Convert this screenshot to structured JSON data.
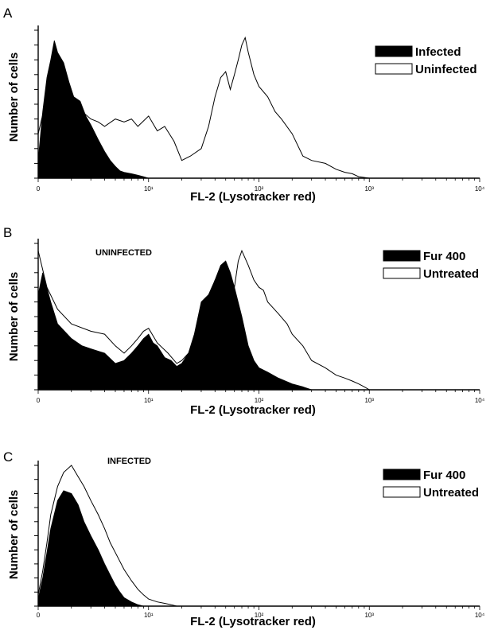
{
  "chart_data": [
    {
      "panel": "A",
      "type": "area",
      "xscale": "log",
      "xlabel": "FL-2 (Lysotracker red)",
      "ylabel": "Number of cells",
      "xticks": [
        "0",
        "10¹",
        "10²",
        "10³",
        "10⁴"
      ],
      "xlim": [
        1,
        10000
      ],
      "annotation": "",
      "legend": {
        "position": "top-right",
        "entries": [
          "Infected",
          "Uninfected"
        ]
      },
      "series": [
        {
          "name": "Infected",
          "fill": "black",
          "x": [
            1,
            1.1,
            1.2,
            1.3,
            1.4,
            1.5,
            1.7,
            1.9,
            2.1,
            2.4,
            2.7,
            3.0,
            3.5,
            4,
            4.5,
            5,
            5.5,
            6,
            7,
            8,
            9,
            10
          ],
          "y": [
            12,
            45,
            68,
            80,
            93,
            85,
            78,
            65,
            55,
            52,
            42,
            36,
            26,
            18,
            12,
            8,
            5,
            4,
            3,
            2,
            1,
            0
          ]
        },
        {
          "name": "Uninfected",
          "fill": "white",
          "x": [
            1,
            1.2,
            1.4,
            1.6,
            2.0,
            2.5,
            3.0,
            3.5,
            4,
            5,
            6,
            7,
            8,
            10,
            12,
            14,
            17,
            20,
            24,
            30,
            35,
            40,
            45,
            50,
            55,
            60,
            65,
            70,
            75,
            80,
            90,
            100,
            120,
            140,
            160,
            200,
            250,
            300,
            400,
            500,
            600,
            700,
            800,
            1000
          ],
          "y": [
            30,
            55,
            85,
            70,
            50,
            45,
            40,
            38,
            35,
            40,
            38,
            40,
            35,
            42,
            32,
            35,
            25,
            12,
            15,
            20,
            35,
            55,
            68,
            72,
            60,
            70,
            80,
            90,
            95,
            85,
            70,
            62,
            55,
            45,
            40,
            30,
            15,
            12,
            10,
            6,
            4,
            3,
            1,
            0
          ]
        }
      ]
    },
    {
      "panel": "B",
      "type": "area",
      "xscale": "log",
      "xlabel": "FL-2 (Lysotracker red)",
      "ylabel": "Number of cells",
      "xticks": [
        "0",
        "10¹",
        "10²",
        "10³",
        "10⁴"
      ],
      "xlim": [
        1,
        10000
      ],
      "annotation": "UNINFECTED",
      "legend": {
        "position": "top-right",
        "entries": [
          "Fur 400",
          "Untreated"
        ]
      },
      "series": [
        {
          "name": "Fur 400",
          "fill": "black",
          "x": [
            1,
            1.1,
            1.3,
            1.5,
            2,
            2.5,
            3,
            4,
            5,
            6,
            7,
            8,
            9,
            10,
            11,
            12,
            14,
            16,
            18,
            20,
            23,
            26,
            30,
            35,
            40,
            45,
            50,
            55,
            60,
            70,
            80,
            90,
            100,
            120,
            150,
            200,
            250,
            300
          ],
          "y": [
            65,
            80,
            60,
            45,
            35,
            30,
            28,
            25,
            18,
            20,
            25,
            30,
            35,
            38,
            32,
            30,
            22,
            20,
            16,
            18,
            25,
            38,
            60,
            65,
            75,
            85,
            88,
            80,
            70,
            50,
            30,
            20,
            15,
            12,
            8,
            4,
            2,
            0
          ]
        },
        {
          "name": "Untreated",
          "fill": "white",
          "x": [
            1,
            1.2,
            1.5,
            2,
            3,
            4,
            5,
            6,
            7,
            8,
            9,
            10,
            12,
            15,
            18,
            20,
            25,
            30,
            35,
            40,
            50,
            60,
            65,
            70,
            80,
            90,
            100,
            110,
            120,
            150,
            180,
            200,
            250,
            300,
            400,
            500,
            600,
            700,
            800,
            900,
            1000
          ],
          "y": [
            95,
            70,
            55,
            45,
            40,
            38,
            30,
            25,
            30,
            35,
            40,
            42,
            32,
            25,
            18,
            20,
            28,
            45,
            60,
            75,
            80,
            70,
            88,
            95,
            85,
            75,
            70,
            68,
            60,
            52,
            45,
            38,
            30,
            20,
            15,
            10,
            8,
            6,
            4,
            2,
            0
          ]
        }
      ]
    },
    {
      "panel": "C",
      "type": "area",
      "xscale": "log",
      "xlabel": "FL-2 (Lysotracker red)",
      "ylabel": "Number of cells",
      "xticks": [
        "0",
        "10¹",
        "10²",
        "10³",
        "10⁴"
      ],
      "xlim": [
        1,
        10000
      ],
      "annotation": "INFECTED",
      "legend": {
        "position": "top-right",
        "entries": [
          "Fur 400",
          "Untreated"
        ]
      },
      "series": [
        {
          "name": "Fur 400",
          "fill": "black",
          "x": [
            1,
            1.1,
            1.2,
            1.3,
            1.5,
            1.7,
            2.0,
            2.3,
            2.6,
            3.0,
            3.5,
            4,
            4.5,
            5,
            5.5,
            6,
            7,
            8,
            9,
            10
          ],
          "y": [
            5,
            20,
            38,
            55,
            75,
            82,
            80,
            72,
            60,
            50,
            40,
            30,
            22,
            15,
            10,
            6,
            3,
            1,
            0,
            0
          ]
        },
        {
          "name": "Untreated",
          "fill": "white",
          "x": [
            1,
            1.1,
            1.2,
            1.3,
            1.5,
            1.7,
            2.0,
            2.3,
            2.6,
            3.0,
            3.5,
            4,
            4.5,
            5,
            6,
            7,
            8,
            9,
            10,
            12,
            14,
            16,
            18,
            20
          ],
          "y": [
            8,
            25,
            45,
            65,
            85,
            95,
            100,
            92,
            85,
            75,
            65,
            55,
            45,
            38,
            26,
            18,
            12,
            8,
            5,
            3,
            2,
            1,
            0,
            0
          ]
        }
      ]
    }
  ]
}
